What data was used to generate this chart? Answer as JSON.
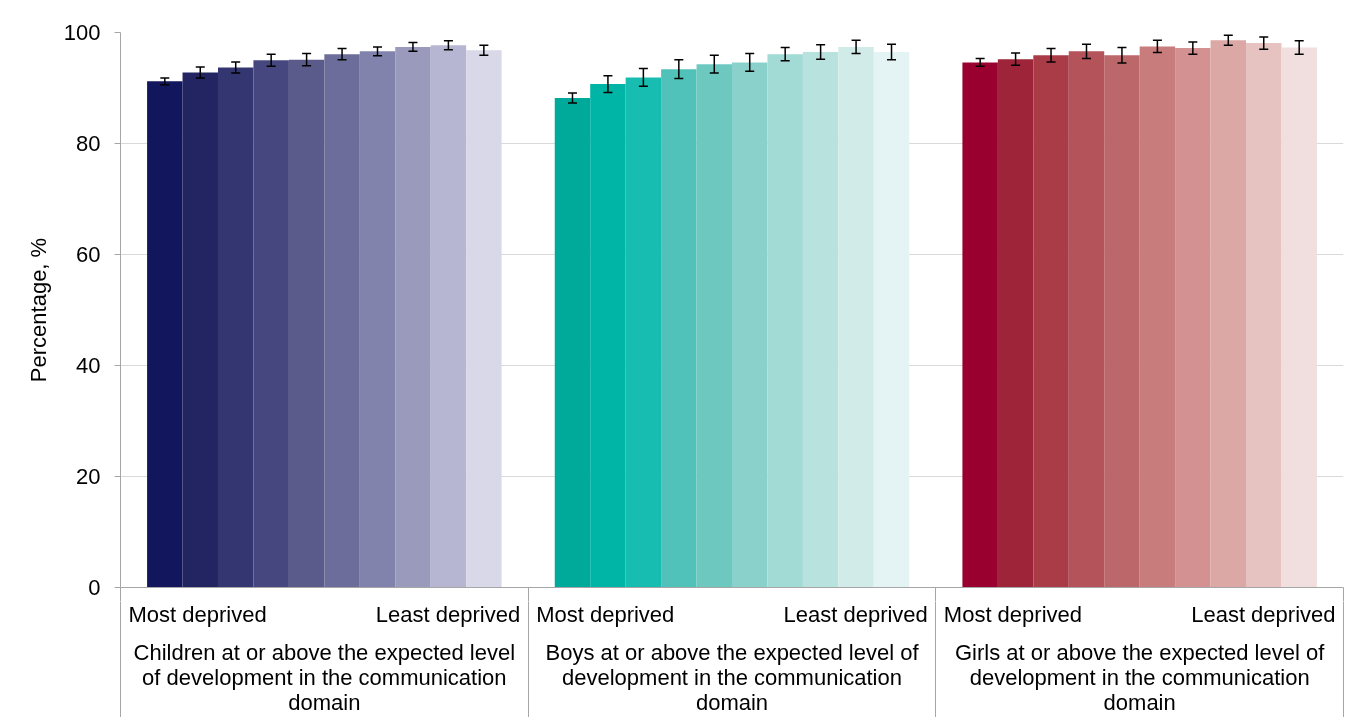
{
  "chart_data": {
    "type": "bar",
    "ylabel": "Percentage, %",
    "ylim": [
      0,
      100
    ],
    "yticks": [
      0,
      20,
      40,
      60,
      80,
      100
    ],
    "grid": "y",
    "categories": [
      "Children at or above the expected level of development in the communication domain",
      "Boys at or above the expected level of development in the communication domain",
      "Girls at or above the expected level of development in the communication domain"
    ],
    "series": [
      {
        "name": "Most deprived",
        "colors": [
          "#12165c",
          "#00aa9a",
          "#990030"
        ],
        "values": [
          91.2,
          88.2,
          94.6
        ],
        "errors": [
          0.6,
          0.9,
          0.7
        ]
      },
      {
        "colors": [
          "#222561",
          "#00b5a6",
          "#9e2439"
        ],
        "values": [
          92.8,
          90.7,
          95.2
        ],
        "errors": [
          1.0,
          1.5,
          1.1
        ]
      },
      {
        "colors": [
          "#333671",
          "#17bdb0",
          "#aa3c48"
        ],
        "values": [
          93.7,
          91.9,
          95.9
        ],
        "errors": [
          1.0,
          1.6,
          1.2
        ]
      },
      {
        "colors": [
          "#46477e",
          "#50c2b9",
          "#b45359"
        ],
        "values": [
          95.0,
          93.4,
          96.6
        ],
        "errors": [
          1.1,
          1.7,
          1.3
        ]
      },
      {
        "colors": [
          "#5a5b8b",
          "#6dc9c0",
          "#bc6769"
        ],
        "values": [
          95.1,
          94.3,
          95.9
        ],
        "errors": [
          1.1,
          1.6,
          1.4
        ]
      },
      {
        "colors": [
          "#6c6d9b",
          "#89d1ca",
          "#c87c7c"
        ],
        "values": [
          96.1,
          94.6,
          97.5
        ],
        "errors": [
          1.0,
          1.6,
          1.1
        ]
      },
      {
        "colors": [
          "#8283ac",
          "#a2dad5",
          "#d39191"
        ],
        "values": [
          96.6,
          96.1,
          97.2
        ],
        "errors": [
          0.8,
          1.2,
          1.1
        ]
      },
      {
        "colors": [
          "#9a9abd",
          "#b8e2de",
          "#dca8a6"
        ],
        "values": [
          97.4,
          96.5,
          98.6
        ],
        "errors": [
          0.8,
          1.3,
          0.9
        ]
      },
      {
        "colors": [
          "#b6b6d3",
          "#d1ebe8",
          "#e6c3c1"
        ],
        "values": [
          97.7,
          97.4,
          98.1
        ],
        "errors": [
          0.8,
          1.2,
          1.1
        ]
      },
      {
        "name": "Least deprived",
        "colors": [
          "#d9d8e8",
          "#e4f3f3",
          "#f1dede"
        ],
        "values": [
          96.8,
          96.5,
          97.3
        ],
        "errors": [
          0.9,
          1.4,
          1.2
        ]
      }
    ]
  }
}
